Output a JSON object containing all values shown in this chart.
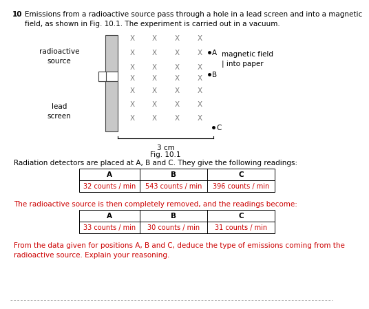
{
  "question_number": "10",
  "intro_text": "Emissions from a radioactive source pass through a hole in a lead screen and into a magnetic\nfield, as shown in Fig. 10.1. The experiment is carried out in a vacuum.",
  "fig_label": "Fig. 10.1",
  "dim_label": "3 cm",
  "magnetic_field_text": "magnetic field\n| into paper",
  "radioactive_source_text": "radioactive\nsource",
  "lead_screen_text": "lead\nscreen",
  "table1_header": [
    "A",
    "B",
    "C"
  ],
  "table1_values": [
    "32 counts / min",
    "543 counts / min",
    "396 counts / min"
  ],
  "table2_header": [
    "A",
    "B",
    "C"
  ],
  "table2_values": [
    "33 counts / min",
    "30 counts / min",
    "31 counts / min"
  ],
  "text1": "Radiation detectors are placed at A, B and C. They give the following readings:",
  "text2": "The radioactive source is then completely removed, and the readings become:",
  "text3": "From the data given for positions A, B and C, deduce the type of emissions coming from the\nradioactive source. Explain your reasoning.",
  "bg_color": "#ffffff",
  "text_color": "#000000",
  "red_text_color": "#cc0000",
  "table_value_color": "#cc0000",
  "x_cross_color": "#7a7a7a",
  "screen_fill": "#c8c8c8",
  "screen_edge": "#444444",
  "dot_color": "#000000"
}
